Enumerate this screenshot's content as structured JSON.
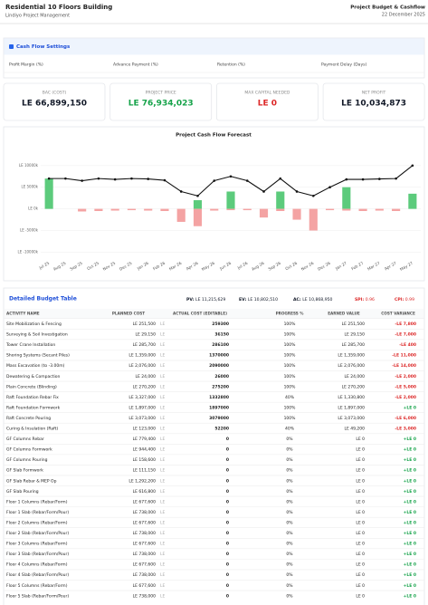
{
  "header": {
    "title": "Residential 10 Floors Building",
    "subtitle": "Lindiyo Project Management",
    "report": "Project Budget & Cashflow",
    "date": "22 December 2025"
  },
  "settings": {
    "title": "Cash Flow Settings",
    "fields": [
      "Profit Margin (%)",
      "Advance Payment (%)",
      "Retention (%)",
      "Payment Delay (Days)"
    ]
  },
  "kpis": [
    {
      "label": "BAC (COST)",
      "value": "LE 66,899,150",
      "color": "#111827"
    },
    {
      "label": "PROJECT PRICE",
      "value": "LE 76,934,023",
      "color": "#16a34a"
    },
    {
      "label": "MAX CAPITAL NEEDED",
      "value": "LE 0",
      "color": "#dc2626"
    },
    {
      "label": "NET PROFIT",
      "value": "LE 10,034,873",
      "color": "#111827"
    }
  ],
  "chart_data": {
    "type": "bar",
    "title": "Project Cash Flow Forecast",
    "categories": [
      "Jul 25",
      "Aug 25",
      "Sep 25",
      "Oct 25",
      "Nov 25",
      "Dec 25",
      "Jan 26",
      "Feb 26",
      "Mar 26",
      "Apr 26",
      "May 26",
      "Jun 26",
      "Jul 26",
      "Aug 26",
      "Sep 26",
      "Oct 26",
      "Nov 26",
      "Dec 26",
      "Jan 27",
      "Feb 27",
      "Mar 27",
      "Apr 27",
      "May 27"
    ],
    "series": [
      {
        "type": "bar",
        "color": "#5ccb7c",
        "values": [
          7000,
          0,
          0,
          0,
          0,
          0,
          0,
          0,
          0,
          2000,
          0,
          4000,
          0,
          0,
          4000,
          0,
          0,
          0,
          5000,
          0,
          0,
          0,
          3500
        ]
      },
      {
        "type": "bar",
        "color": "#f4a3a3",
        "values": [
          0,
          0,
          -600,
          -500,
          -400,
          -300,
          -400,
          -500,
          -3000,
          -4000,
          -400,
          -300,
          -300,
          -2000,
          -500,
          -2500,
          -5000,
          -300,
          -400,
          -500,
          -400,
          -500,
          0
        ]
      },
      {
        "type": "line",
        "color": "#111111",
        "values": [
          7000,
          7000,
          6500,
          7000,
          6800,
          7000,
          6900,
          6600,
          4000,
          3000,
          6500,
          7500,
          6500,
          4000,
          7000,
          4000,
          3000,
          5000,
          6800,
          6800,
          6900,
          7000,
          10000
        ]
      }
    ],
    "ylim": [
      -12000,
      11000
    ],
    "yticks": [
      {
        "value": -10000,
        "label": "LE -10000k"
      },
      {
        "value": -5000,
        "label": "LE -5000k"
      },
      {
        "value": 0,
        "label": "LE 0k"
      },
      {
        "value": 5000,
        "label": "LE 5000k"
      },
      {
        "value": 10000,
        "label": "LE 10000k"
      }
    ],
    "grid": true
  },
  "budget": {
    "title": "Detailed Budget Table",
    "metrics": [
      {
        "label": "PV:",
        "value": "LE 11,215,629",
        "color": "#111827"
      },
      {
        "label": "EV:",
        "value": "LE 10,802,510",
        "color": "#111827"
      },
      {
        "label": "AC:",
        "value": "LE 10,868,950",
        "color": "#111827"
      },
      {
        "label": "SPI:",
        "value": "0.96",
        "color": "#dc2626"
      },
      {
        "label": "CPI:",
        "value": "0.99",
        "color": "#dc2626"
      }
    ]
  },
  "table": {
    "columns": [
      "ACTIVITY NAME",
      "PLANNED COST",
      "ACTUAL COST (EDITABLE)",
      "PROGRESS %",
      "EARNED VALUE",
      "COST VARIANCE"
    ],
    "actual_prefix": "LE",
    "rows": [
      [
        "Site Mobilization & Fencing",
        "LE 251,500",
        "259300",
        "100%",
        "LE 251,500",
        "-LE 7,800"
      ],
      [
        "Surveying & Soil Investigation",
        "LE 29,150",
        "36150",
        "100%",
        "LE 29,150",
        "-LE 7,000"
      ],
      [
        "Tower Crane Installation",
        "LE 285,700",
        "286100",
        "100%",
        "LE 285,700",
        "-LE 400"
      ],
      [
        "Shoring Systems (Secant Piles)",
        "LE 1,359,000",
        "1370000",
        "100%",
        "LE 1,359,000",
        "-LE 11,000"
      ],
      [
        "Mass Excavation (to -3.00m)",
        "LE 2,076,000",
        "2090000",
        "100%",
        "LE 2,076,000",
        "-LE 14,000"
      ],
      [
        "Dewatering & Compaction",
        "LE 24,000",
        "26000",
        "100%",
        "LE 24,000",
        "-LE 2,000"
      ],
      [
        "Plain Concrete (Blinding)",
        "LE 270,200",
        "275200",
        "100%",
        "LE 270,200",
        "-LE 5,000"
      ],
      [
        "Raft Foundation Rebar Fix",
        "LE 3,327,000",
        "1332800",
        "40%",
        "LE 1,330,800",
        "-LE 2,000"
      ],
      [
        "Raft Foundation Formwork",
        "LE 1,897,000",
        "1897000",
        "100%",
        "LE 1,897,000",
        "+LE 0"
      ],
      [
        "Raft Concrete Pouring",
        "LE 3,073,000",
        "3079000",
        "100%",
        "LE 3,073,000",
        "-LE 6,000"
      ],
      [
        "Curing & Insulation (Raft)",
        "LE 123,000",
        "52200",
        "40%",
        "LE 49,200",
        "-LE 3,000"
      ],
      [
        "GF Columns Rebar",
        "LE 779,400",
        "0",
        "0%",
        "LE 0",
        "+LE 0"
      ],
      [
        "GF Columns Formwork",
        "LE 944,400",
        "0",
        "0%",
        "LE 0",
        "+LE 0"
      ],
      [
        "GF Columns Pouring",
        "LE 158,600",
        "0",
        "0%",
        "LE 0",
        "+LE 0"
      ],
      [
        "GF Slab Formwork",
        "LE 111,150",
        "0",
        "0%",
        "LE 0",
        "+LE 0"
      ],
      [
        "GF Slab Rebar & MEP Op",
        "LE 1,292,200",
        "0",
        "0%",
        "LE 0",
        "+LE 0"
      ],
      [
        "GF Slab Pouring",
        "LE 616,800",
        "0",
        "0%",
        "LE 0",
        "+LE 0"
      ],
      [
        "Floor 1 Columns (Rebar/Form)",
        "LE 677,600",
        "0",
        "0%",
        "LE 0",
        "+LE 0"
      ],
      [
        "Floor 1 Slab (Rebar/Form/Pour)",
        "LE 738,000",
        "0",
        "0%",
        "LE 0",
        "+LE 0"
      ],
      [
        "Floor 2 Columns (Rebar/Form)",
        "LE 677,600",
        "0",
        "0%",
        "LE 0",
        "+LE 0"
      ],
      [
        "Floor 2 Slab (Rebar/Form/Pour)",
        "LE 738,000",
        "0",
        "0%",
        "LE 0",
        "+LE 0"
      ],
      [
        "Floor 3 Columns (Rebar/Form)",
        "LE 677,600",
        "0",
        "0%",
        "LE 0",
        "+LE 0"
      ],
      [
        "Floor 3 Slab (Rebar/Form/Pour)",
        "LE 738,000",
        "0",
        "0%",
        "LE 0",
        "+LE 0"
      ],
      [
        "Floor 4 Columns (Rebar/Form)",
        "LE 677,600",
        "0",
        "0%",
        "LE 0",
        "+LE 0"
      ],
      [
        "Floor 4 Slab (Rebar/Form/Pour)",
        "LE 738,000",
        "0",
        "0%",
        "LE 0",
        "+LE 0"
      ],
      [
        "Floor 5 Columns (Rebar/Form)",
        "LE 677,600",
        "0",
        "0%",
        "LE 0",
        "+LE 0"
      ],
      [
        "Floor 5 Slab (Rebar/Form/Pour)",
        "LE 738,000",
        "0",
        "0%",
        "LE 0",
        "+LE 0"
      ]
    ]
  }
}
